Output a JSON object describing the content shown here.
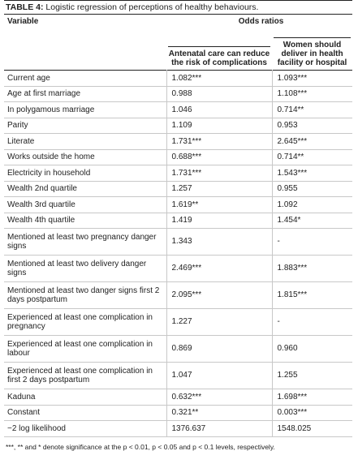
{
  "table": {
    "title_bold": "TABLE 4:",
    "title_text": " Logistic regression of perceptions of healthy behaviours.",
    "col_variable": "Variable",
    "col_group": "Odds ratios",
    "col_a": "Antenatal care can reduce the risk of complications",
    "col_b": "Women should deliver in health facility or hospital",
    "rows": [
      {
        "label": "Current age",
        "a": "1.082***",
        "b": "1.093***",
        "tall": false
      },
      {
        "label": "Age at first marriage",
        "a": "0.988",
        "b": "1.108***",
        "tall": false
      },
      {
        "label": "In polygamous marriage",
        "a": "1.046",
        "b": "0.714**",
        "tall": false
      },
      {
        "label": "Parity",
        "a": "1.109",
        "b": "0.953",
        "tall": false
      },
      {
        "label": "Literate",
        "a": "1.731***",
        "b": "2.645***",
        "tall": false
      },
      {
        "label": "Works outside the home",
        "a": "0.688***",
        "b": "0.714**",
        "tall": false
      },
      {
        "label": "Electricity in household",
        "a": "1.731***",
        "b": "1.543***",
        "tall": false
      },
      {
        "label": "Wealth 2nd quartile",
        "a": "1.257",
        "b": "0.955",
        "tall": false
      },
      {
        "label": "Wealth 3rd quartile",
        "a": "1.619**",
        "b": "1.092",
        "tall": false
      },
      {
        "label": "Wealth 4th quartile",
        "a": "1.419",
        "b": "1.454*",
        "tall": false
      },
      {
        "label": "Mentioned at least two pregnancy danger signs",
        "a": "1.343",
        "b": "-",
        "tall": true
      },
      {
        "label": "Mentioned at least two delivery danger signs",
        "a": "2.469***",
        "b": "1.883***",
        "tall": true
      },
      {
        "label": "Mentioned at least two danger signs first 2 days postpartum",
        "a": "2.095***",
        "b": "1.815***",
        "tall": true
      },
      {
        "label": "Experienced at least one complication in pregnancy",
        "a": "1.227",
        "b": "-",
        "tall": true
      },
      {
        "label": "Experienced at least one complication in labour",
        "a": "0.869",
        "b": "0.960",
        "tall": true
      },
      {
        "label": "Experienced at least one complication in first 2 days postpartum",
        "a": "1.047",
        "b": "1.255",
        "tall": true
      },
      {
        "label": "Kaduna",
        "a": "0.632***",
        "b": "1.698***",
        "tall": false
      },
      {
        "label": "Constant",
        "a": "0.321**",
        "b": "0.003***",
        "tall": false
      },
      {
        "label": "−2 log likelihood",
        "a": "1376.637",
        "b": "1548.025",
        "tall": false
      }
    ],
    "footnote": "***, ** and * denote significance at the p < 0.01, p < 0.05 and p < 0.1 levels, respectively."
  }
}
